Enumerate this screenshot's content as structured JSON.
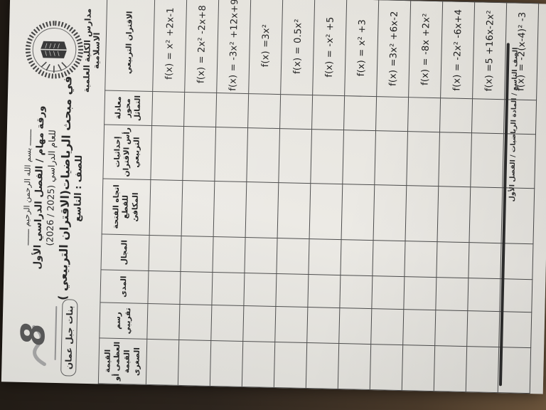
{
  "header": {
    "school_name": "مدارس الكلية العلمية الاسلامية",
    "basmala": "ـــــــ بسم الله الرحمن الرحيم ـــــــ",
    "sheet_line": "ورقة مهام / الفصل الدراسي الأول",
    "year_line": "للعام الدراسي (2025 / 2026)",
    "subject_line": "في مبحث الرياضيات(الاقتران التربيعي )",
    "grade_line": "للصف : التاسع",
    "logo_number": "8",
    "branch_badge": "بنات جبل عمان"
  },
  "table": {
    "columns": [
      "الاقتران التربيعي",
      "معادلة محور التماثل",
      "إحداثيات رأس الاقتران التربيعي",
      "اتجاه الفتحة للقطع المكافئ",
      "المجال",
      "المدى",
      "رسم تقريبي",
      "القيمة العظمى أو القيمة الصغرى"
    ],
    "rows": [
      "f(x) = x² +2x-1",
      "f(x) = 2x² -2x+8",
      "f(x) = -3x² +12x+9",
      "f(x) =3x²",
      "f(x) = 0.5x²",
      "f(x) = -x² +5",
      "f(x) = x² +3",
      "f(x) =3x² +6x-2",
      "f(x) = -8x +2x²",
      "f(x) = -2x² -6x+4",
      "f(x) =5 +16x-2x²",
      "f(x) = -2(x-4)² -3"
    ]
  },
  "footer": {
    "text": "الصف التاسع / المادة الرياضيات / الفصل الأول"
  },
  "colors": {
    "paper": "#eceae5",
    "surface": "#2c241d",
    "table_border": "#4d4d4d",
    "ink": "#1d1d1d"
  }
}
